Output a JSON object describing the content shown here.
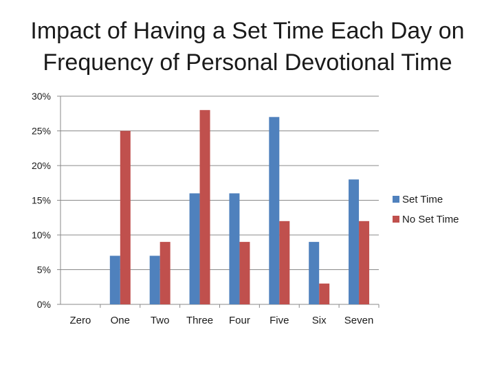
{
  "chart_data": {
    "type": "bar",
    "title": [
      "Impact of Having a Set Time Each Day on",
      "Frequency of Personal Devotional Time"
    ],
    "categories": [
      "Zero",
      "One",
      "Two",
      "Three",
      "Four",
      "Five",
      "Six",
      "Seven"
    ],
    "series": [
      {
        "name": "Set Time",
        "color": "#4f81bd",
        "values": [
          0,
          7,
          7,
          16,
          16,
          27,
          9,
          18
        ]
      },
      {
        "name": "No Set Time",
        "color": "#c0504d",
        "values": [
          0,
          25,
          9,
          28,
          9,
          12,
          3,
          12
        ]
      }
    ],
    "ylim": [
      0,
      30
    ],
    "yticks": [
      0,
      5,
      10,
      15,
      20,
      25,
      30
    ],
    "ytick_labels": [
      "0%",
      "5%",
      "10%",
      "15%",
      "20%",
      "25%",
      "30%"
    ],
    "grid": true,
    "legend": "right"
  }
}
